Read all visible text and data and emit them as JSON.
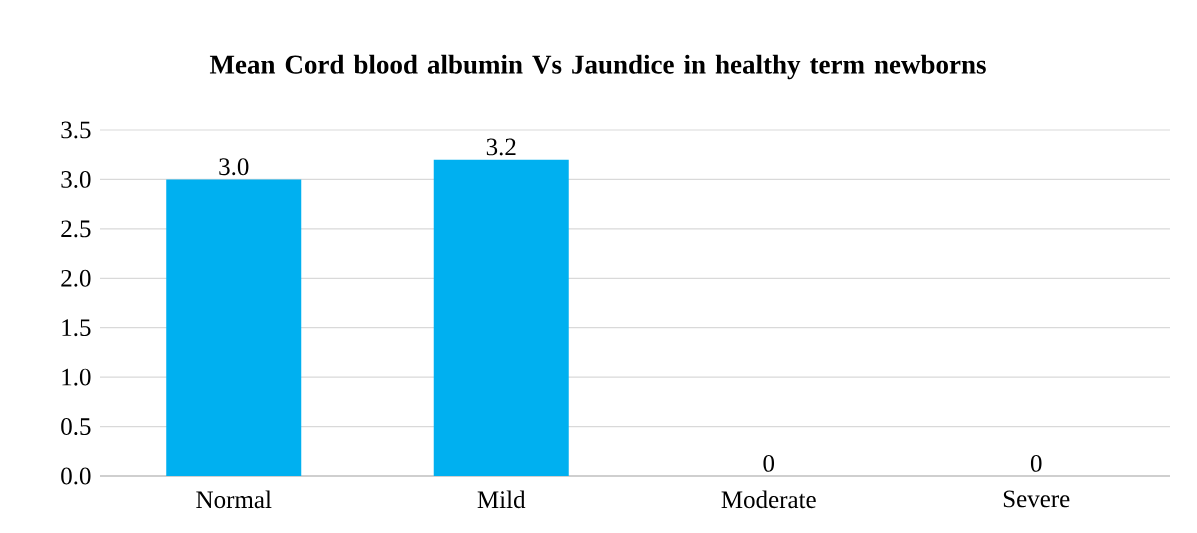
{
  "chart_data": {
    "type": "bar",
    "title": "Mean Cord blood albumin Vs Jaundice in healthy term newborns",
    "categories": [
      "Normal",
      "Mild",
      "Moderate",
      "Severe"
    ],
    "values": [
      3.0,
      3.2,
      0,
      0
    ],
    "value_labels": [
      "3.0",
      "3.2",
      "0",
      "0"
    ],
    "color": "#00b0f0",
    "ylim": [
      0,
      3.5
    ],
    "yticks": [
      {
        "value": 0,
        "label": "0.0"
      },
      {
        "value": 0.5,
        "label": "0.5"
      },
      {
        "value": 1,
        "label": "1.0"
      },
      {
        "value": 1.5,
        "label": "1.5"
      },
      {
        "value": 2,
        "label": "2.0"
      },
      {
        "value": 2.5,
        "label": "2.5"
      },
      {
        "value": 3,
        "label": "3.0"
      },
      {
        "value": 3.5,
        "label": "3.5"
      }
    ],
    "grid": "y"
  }
}
